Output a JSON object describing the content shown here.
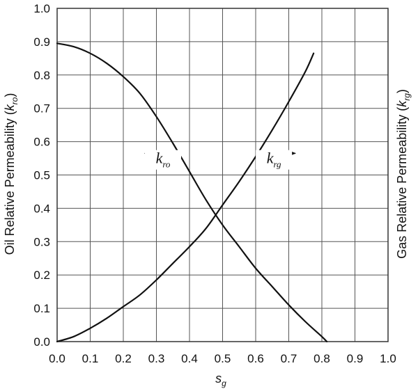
{
  "chart_data": {
    "type": "line",
    "title": "",
    "xlabel": {
      "main": "s",
      "sub": "g"
    },
    "ylabel_left": {
      "prefix": "Oil Relative Permeability (",
      "var": "k",
      "sub": "ro",
      "suffix": ")"
    },
    "ylabel_right": {
      "prefix": "Gas Relative Permeability (",
      "var": "k",
      "sub": "rg",
      "suffix": ")"
    },
    "xlim": [
      0,
      1
    ],
    "ylim": [
      0,
      1
    ],
    "x_ticks": [
      "0.0",
      "0.1",
      "0.2",
      "0.3",
      "0.4",
      "0.5",
      "0.6",
      "0.7",
      "0.8",
      "0.9",
      "1.0"
    ],
    "y_ticks": [
      "0.0",
      "0.1",
      "0.2",
      "0.3",
      "0.4",
      "0.5",
      "0.6",
      "0.7",
      "0.8",
      "0.9",
      "1.0"
    ],
    "grid": true,
    "series": [
      {
        "id": "kro",
        "x": [
          0.0,
          0.05,
          0.1,
          0.15,
          0.2,
          0.25,
          0.3,
          0.35,
          0.4,
          0.45,
          0.5,
          0.55,
          0.6,
          0.65,
          0.7,
          0.75,
          0.8,
          0.815
        ],
        "y": [
          0.895,
          0.885,
          0.865,
          0.835,
          0.795,
          0.745,
          0.675,
          0.595,
          0.51,
          0.425,
          0.35,
          0.285,
          0.22,
          0.165,
          0.11,
          0.06,
          0.015,
          0.0
        ]
      },
      {
        "id": "krg",
        "x": [
          0.0,
          0.05,
          0.1,
          0.15,
          0.2,
          0.25,
          0.3,
          0.35,
          0.4,
          0.45,
          0.5,
          0.55,
          0.6,
          0.65,
          0.7,
          0.75,
          0.775
        ],
        "y": [
          0.0,
          0.015,
          0.04,
          0.07,
          0.105,
          0.14,
          0.185,
          0.235,
          0.285,
          0.34,
          0.41,
          0.48,
          0.555,
          0.635,
          0.72,
          0.81,
          0.865
        ]
      }
    ],
    "annotations": [
      {
        "id": "kro",
        "var": "k",
        "sub": "ro",
        "x": 0.32,
        "y": 0.535,
        "arrow_from": 0.37,
        "arrow_to": 0.265,
        "arrow_y": 0.565
      },
      {
        "id": "krg",
        "var": "k",
        "sub": "rg",
        "x": 0.655,
        "y": 0.535,
        "arrow_from": 0.605,
        "arrow_to": 0.72,
        "arrow_y": 0.565
      }
    ]
  }
}
